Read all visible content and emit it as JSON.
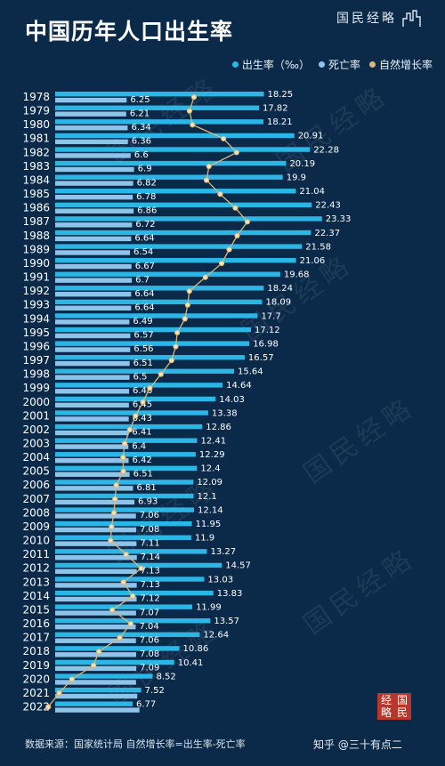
{
  "page": {
    "title": "中国历年人口出生率",
    "brand": "国民经略",
    "source_note": "数据来源：国家统计局 自然增长率=出生率-死亡率",
    "credit": "知乎 @三十有点二",
    "stamp": [
      "经",
      "国",
      "略",
      "民"
    ],
    "colors": {
      "background": "#0b2a4a",
      "birth_rate": "#2bb6e6",
      "death_rate": "#8fc4ea",
      "natural_growth": "#d9b77a"
    }
  },
  "chart_data": {
    "type": "bar",
    "orientation": "horizontal",
    "title": "中国历年人口出生率",
    "categories": [
      "1978",
      "1979",
      "1980",
      "1981",
      "1982",
      "1983",
      "1984",
      "1985",
      "1986",
      "1987",
      "1988",
      "1989",
      "1990",
      "1991",
      "1992",
      "1993",
      "1994",
      "1995",
      "1996",
      "1997",
      "1998",
      "1999",
      "2000",
      "2001",
      "2002",
      "2003",
      "2004",
      "2005",
      "2006",
      "2007",
      "2008",
      "2009",
      "2010",
      "2011",
      "2012",
      "2013",
      "2014",
      "2015",
      "2016",
      "2017",
      "2018",
      "2019",
      "2020",
      "2021",
      "2022"
    ],
    "series": [
      {
        "name": "出生率（‰）",
        "kind": "bar",
        "color": "#2bb6e6",
        "values": [
          18.25,
          17.82,
          18.21,
          20.91,
          22.28,
          20.19,
          19.9,
          21.04,
          22.43,
          23.33,
          22.37,
          21.58,
          21.06,
          19.68,
          18.24,
          18.09,
          17.7,
          17.12,
          16.98,
          16.57,
          15.64,
          14.64,
          14.03,
          13.38,
          12.86,
          12.41,
          12.29,
          12.4,
          12.09,
          12.1,
          12.14,
          11.95,
          11.9,
          13.27,
          14.57,
          13.03,
          13.83,
          11.99,
          13.57,
          12.64,
          10.86,
          10.41,
          8.52,
          7.52,
          6.77
        ]
      },
      {
        "name": "死亡率",
        "kind": "bar",
        "color": "#8fc4ea",
        "values": [
          6.25,
          6.21,
          6.34,
          6.36,
          6.6,
          6.9,
          6.82,
          6.78,
          6.86,
          6.72,
          6.64,
          6.54,
          6.67,
          6.7,
          6.64,
          6.64,
          6.49,
          6.57,
          6.56,
          6.51,
          6.5,
          6.46,
          6.45,
          6.43,
          6.41,
          6.4,
          6.42,
          6.51,
          6.81,
          6.93,
          7.06,
          7.08,
          7.11,
          7.14,
          7.13,
          7.13,
          7.12,
          7.07,
          7.04,
          7.06,
          7.08,
          7.09,
          7.07,
          7.18,
          7.37
        ]
      },
      {
        "name": "自然增长率",
        "kind": "line",
        "color": "#d9b77a",
        "values": [
          12.0,
          11.61,
          11.87,
          14.55,
          15.68,
          13.29,
          13.08,
          14.26,
          15.57,
          16.61,
          15.73,
          15.04,
          14.39,
          12.98,
          11.6,
          11.45,
          11.21,
          10.55,
          10.42,
          10.06,
          9.14,
          8.18,
          7.58,
          6.95,
          6.45,
          6.01,
          5.87,
          5.89,
          5.28,
          5.17,
          5.08,
          4.87,
          4.79,
          6.13,
          7.43,
          5.9,
          6.71,
          4.93,
          6.53,
          5.58,
          3.78,
          3.32,
          1.45,
          0.34,
          -0.6
        ]
      }
    ],
    "data_labels": {
      "birth_rate": [
        "18.25",
        "17.82",
        "18.21",
        "20.91",
        "22.28",
        "20.19",
        "19.9",
        "21.04",
        "22.43",
        "23.33",
        "22.37",
        "21.58",
        "21.06",
        "19.68",
        "18.24",
        "18.09",
        "17.7",
        "17.12",
        "16.98",
        "16.57",
        "15.64",
        "14.64",
        "14.03",
        "13.38",
        "12.86",
        "12.41",
        "12.29",
        "12.4",
        "12.09",
        "12.1",
        "12.14",
        "11.95",
        "11.9",
        "13.27",
        "14.57",
        "13.03",
        "13.83",
        "11.99",
        "13.57",
        "12.64",
        "10.86",
        "10.41",
        "8.52",
        "7.52",
        "6.77"
      ],
      "death_rate": [
        "6.25",
        "6.21",
        "6.34",
        "6.36",
        "6.6",
        "6.9",
        "6.82",
        "6.78",
        "6.86",
        "6.72",
        "6.64",
        "6.54",
        "6.67",
        "6.7",
        "6.64",
        "6.64",
        "6.49",
        "6.57",
        "6.56",
        "6.51",
        "6.5",
        "6.46",
        "6.45",
        "6.43",
        "6.41",
        "6.4",
        "6.42",
        "6.51",
        "6.81",
        "6.93",
        "7.06",
        "7.08",
        "7.11",
        "7.14",
        "7.13",
        "7.13",
        "7.12",
        "7.07",
        "7.04",
        "7.06",
        "7.08",
        "7.09",
        "",
        "",
        ""
      ]
    },
    "legend": "top-right",
    "grid": false
  }
}
